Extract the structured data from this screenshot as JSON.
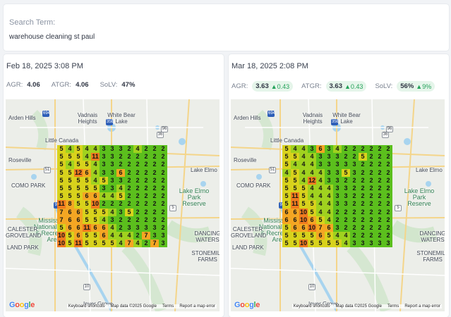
{
  "search": {
    "label": "Search Term:",
    "value": "warehouse cleaning st paul"
  },
  "map_text": {
    "places": [
      "Arden Hills",
      "Vadnais Heights",
      "White Bear Lake",
      "Little Canada",
      "Roseville",
      "Lake Elmo",
      "COMO PARK",
      "Lake Elmo Park Reserve",
      "Mississippi National River & Recreation Area",
      "CALESTER GROVELAND",
      "DANCING WATERS",
      "LAND PARK",
      "STONEMILL FARMS",
      "Inver Grove"
    ],
    "highways": [
      "694",
      "35E",
      "96",
      "36",
      "51",
      "94",
      "5",
      "10"
    ],
    "logo": "Google",
    "attribution": [
      "Keyboard shortcuts",
      "Map data ©2025 Google",
      "Terms",
      "Report a map error"
    ]
  },
  "colors": {
    "green": "#5bbf1d",
    "light_green": "#a0d21f",
    "yellow": "#d8d21c",
    "orange": "#f4a623",
    "red_orange": "#f07b1f"
  },
  "panels": [
    {
      "date": "Feb 18, 2025 3:08 PM",
      "metrics": [
        {
          "label": "AGR:",
          "value": "4.06",
          "delta": ""
        },
        {
          "label": "ATGR:",
          "value": "4.06",
          "delta": ""
        },
        {
          "label": "SoLV:",
          "value": "47%",
          "delta": ""
        }
      ],
      "grid": [
        [
          5,
          4,
          5,
          4,
          4,
          3,
          3,
          3,
          2,
          4,
          2,
          2,
          2
        ],
        [
          5,
          5,
          5,
          4,
          11,
          3,
          3,
          2,
          2,
          2,
          2,
          2,
          2
        ],
        [
          5,
          4,
          5,
          5,
          4,
          3,
          3,
          2,
          2,
          2,
          2,
          2,
          2
        ],
        [
          5,
          5,
          12,
          6,
          4,
          3,
          3,
          6,
          2,
          2,
          2,
          2,
          2
        ],
        [
          5,
          5,
          5,
          5,
          4,
          5,
          3,
          3,
          2,
          2,
          2,
          2,
          2
        ],
        [
          5,
          5,
          5,
          5,
          5,
          3,
          3,
          4,
          2,
          2,
          2,
          2,
          2
        ],
        [
          5,
          5,
          5,
          6,
          6,
          4,
          4,
          5,
          2,
          2,
          2,
          2,
          2
        ],
        [
          11,
          8,
          5,
          5,
          10,
          2,
          2,
          2,
          2,
          2,
          2,
          2,
          2
        ],
        [
          7,
          6,
          6,
          5,
          5,
          5,
          4,
          3,
          5,
          2,
          2,
          2,
          2
        ],
        [
          7,
          6,
          6,
          5,
          5,
          4,
          3,
          2,
          2,
          2,
          2,
          2,
          2
        ],
        [
          5,
          6,
          6,
          11,
          6,
          6,
          4,
          2,
          3,
          3,
          3,
          3,
          2
        ],
        [
          10,
          5,
          6,
          5,
          5,
          6,
          4,
          4,
          4,
          2,
          7,
          3,
          3
        ],
        [
          10,
          5,
          11,
          5,
          5,
          5,
          5,
          4,
          7,
          4,
          2,
          7,
          3
        ]
      ]
    },
    {
      "date": "Mar 18, 2025 2:08 PM",
      "metrics": [
        {
          "label": "AGR:",
          "value": "3.63",
          "delta": "▲0.43"
        },
        {
          "label": "ATGR:",
          "value": "3.63",
          "delta": "▲0.43"
        },
        {
          "label": "SoLV:",
          "value": "56%",
          "delta": "▲9%"
        }
      ],
      "grid": [
        [
          5,
          4,
          4,
          3,
          6,
          3,
          4,
          2,
          2,
          2,
          2,
          2,
          2
        ],
        [
          5,
          5,
          4,
          4,
          3,
          3,
          3,
          2,
          2,
          5,
          2,
          2,
          2
        ],
        [
          5,
          4,
          4,
          4,
          3,
          3,
          3,
          3,
          3,
          2,
          2,
          2,
          2
        ],
        [
          4,
          5,
          4,
          4,
          4,
          3,
          3,
          5,
          3,
          2,
          2,
          2,
          2
        ],
        [
          5,
          5,
          4,
          12,
          4,
          3,
          3,
          2,
          2,
          2,
          2,
          2,
          2
        ],
        [
          5,
          5,
          5,
          4,
          4,
          4,
          3,
          3,
          2,
          2,
          2,
          2,
          2
        ],
        [
          5,
          11,
          5,
          4,
          4,
          4,
          3,
          3,
          2,
          2,
          2,
          2,
          2
        ],
        [
          5,
          11,
          5,
          5,
          4,
          4,
          3,
          3,
          2,
          2,
          2,
          2,
          2
        ],
        [
          6,
          6,
          10,
          5,
          4,
          4,
          2,
          2,
          2,
          2,
          2,
          2,
          2
        ],
        [
          6,
          6,
          10,
          6,
          5,
          4,
          2,
          2,
          2,
          2,
          2,
          2,
          2
        ],
        [
          5,
          6,
          6,
          10,
          7,
          6,
          3,
          2,
          2,
          2,
          2,
          2,
          2
        ],
        [
          5,
          5,
          5,
          5,
          6,
          5,
          4,
          4,
          2,
          2,
          2,
          2,
          2
        ],
        [
          5,
          5,
          10,
          5,
          5,
          5,
          5,
          4,
          3,
          3,
          3,
          3,
          3
        ]
      ]
    }
  ]
}
